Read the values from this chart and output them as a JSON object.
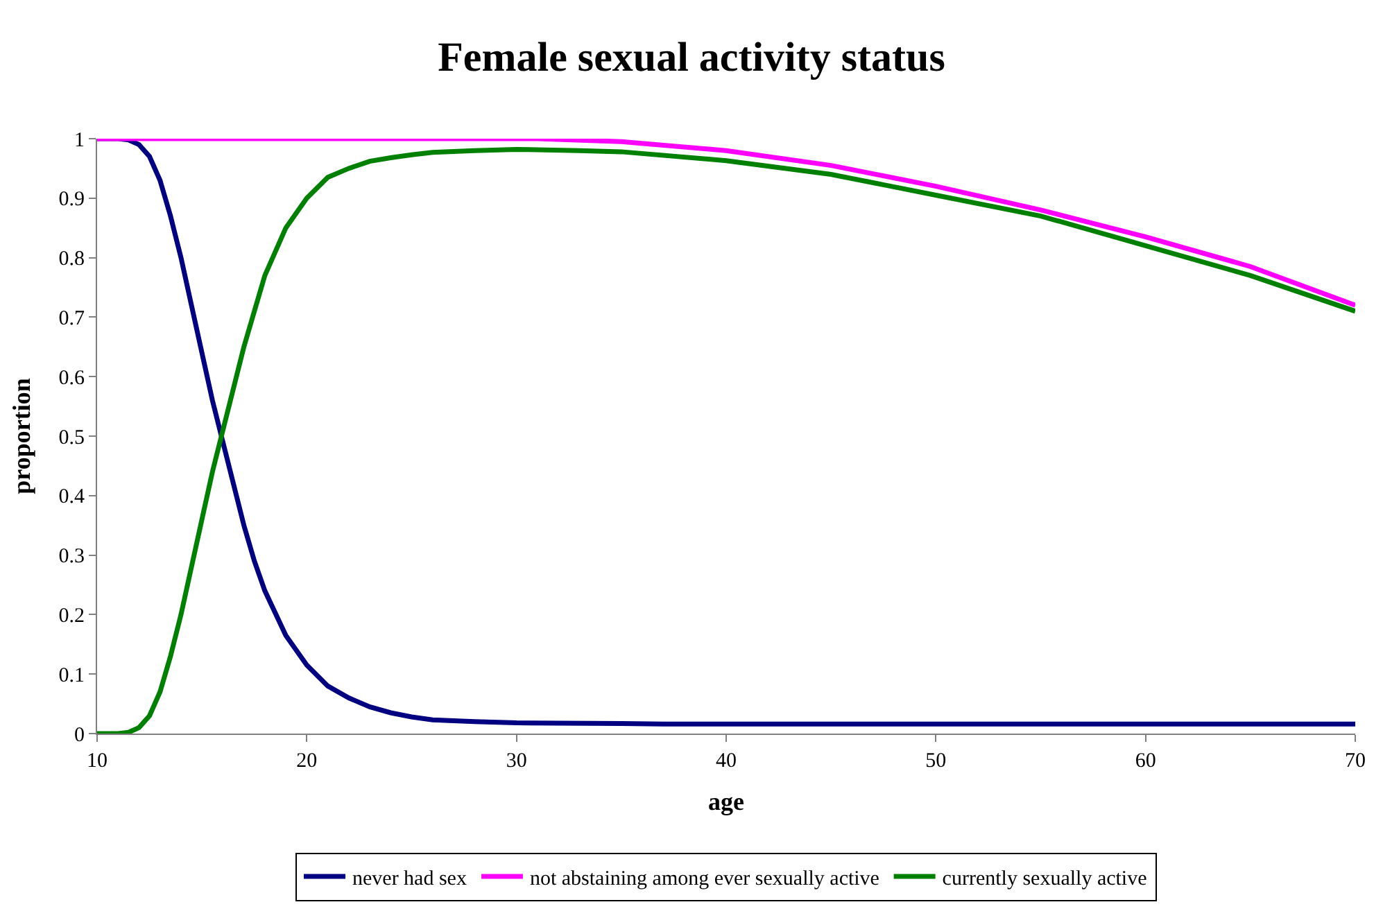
{
  "chart_data": {
    "type": "line",
    "title": "Female sexual activity status",
    "xlabel": "age",
    "ylabel": "proportion",
    "xlim": [
      10,
      70
    ],
    "xticks": [
      10,
      20,
      30,
      40,
      50,
      60,
      70
    ],
    "ylim": [
      0,
      1
    ],
    "yticks": [
      0,
      0.1,
      0.2,
      0.3,
      0.4,
      0.5,
      0.6,
      0.7,
      0.8,
      0.9,
      1
    ],
    "legend": "bottom",
    "marker": "none",
    "line_style": "solid",
    "series": [
      {
        "name": "never had sex",
        "color": "#000080",
        "x": [
          10,
          11,
          11.5,
          12,
          12.5,
          13,
          13.5,
          14,
          14.5,
          15,
          15.5,
          16,
          16.5,
          17,
          17.5,
          18,
          19,
          20,
          21,
          22,
          23,
          24,
          25,
          26,
          28,
          30,
          35,
          37,
          40,
          50,
          60,
          70
        ],
        "values": [
          1,
          1,
          0.998,
          0.99,
          0.97,
          0.93,
          0.87,
          0.8,
          0.72,
          0.64,
          0.56,
          0.49,
          0.42,
          0.35,
          0.29,
          0.24,
          0.165,
          0.115,
          0.08,
          0.06,
          0.045,
          0.035,
          0.028,
          0.023,
          0.02,
          0.018,
          0.017,
          0.016,
          0.016,
          0.016,
          0.016,
          0.016
        ]
      },
      {
        "name": "not abstaining among ever sexually active",
        "color": "#ff00ff",
        "x": [
          10,
          20,
          30,
          31,
          35,
          40,
          45,
          50,
          55,
          60,
          65,
          70
        ],
        "values": [
          1,
          1,
          1,
          1,
          0.995,
          0.98,
          0.955,
          0.92,
          0.88,
          0.835,
          0.785,
          0.72
        ]
      },
      {
        "name": "currently sexually active",
        "color": "#008000",
        "x": [
          10,
          11,
          11.5,
          12,
          12.5,
          13,
          13.5,
          14,
          14.5,
          15,
          15.5,
          16,
          16.5,
          17,
          17.5,
          18,
          19,
          20,
          21,
          22,
          23,
          24,
          25,
          26,
          28,
          30,
          33,
          35,
          40,
          45,
          50,
          55,
          60,
          65,
          70
        ],
        "values": [
          0,
          0,
          0.002,
          0.01,
          0.03,
          0.07,
          0.13,
          0.2,
          0.28,
          0.36,
          0.44,
          0.51,
          0.58,
          0.65,
          0.71,
          0.77,
          0.85,
          0.9,
          0.935,
          0.95,
          0.962,
          0.968,
          0.973,
          0.977,
          0.98,
          0.982,
          0.98,
          0.978,
          0.963,
          0.94,
          0.905,
          0.87,
          0.82,
          0.77,
          0.71
        ]
      }
    ]
  }
}
